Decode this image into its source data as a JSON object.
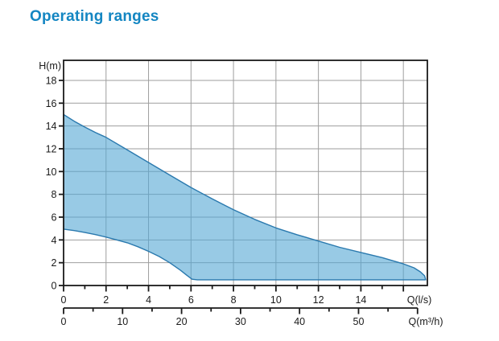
{
  "page": {
    "title": "Operating ranges"
  },
  "colors": {
    "title": "#1486c2",
    "region_fill": "rgba(84,166,212,0.6)",
    "region_stroke": "#2a79ae",
    "grid": "#9e9e9e",
    "axis": "#1a1a1a"
  },
  "chart_data": {
    "type": "area",
    "title": "Operating ranges",
    "description": "Pump operating range envelope: head H in metres versus flow Q, shaded band between minimum and maximum head curves",
    "legend": "none",
    "grid": "on",
    "y_axis": {
      "label": "H(m)",
      "lim": [
        0,
        19.76
      ],
      "tick_values": [
        0,
        2,
        4,
        6,
        8,
        10,
        12,
        14,
        16,
        18
      ],
      "tick_labels": [
        "0",
        "2",
        "4",
        "6",
        "8",
        "10",
        "12",
        "14",
        "16",
        "18"
      ],
      "gridlines": [
        2,
        4,
        6,
        8,
        10,
        12,
        14,
        16,
        18
      ]
    },
    "x_axis": {
      "label": "Q(l/s)",
      "lim": [
        0,
        17.13
      ],
      "labeled_ticks": [
        0,
        2,
        4,
        6,
        8,
        10,
        12,
        14
      ],
      "major_ticks": [
        0,
        2,
        4,
        6,
        8,
        10,
        12,
        14,
        16
      ],
      "minor_ticks": [
        1,
        3,
        5,
        7,
        9,
        11,
        13,
        15
      ],
      "gridlines": [
        2,
        4,
        6,
        8,
        10,
        12,
        14,
        16
      ]
    },
    "x_axis_secondary": {
      "label": "Q(m³/h)",
      "units_per_primary": 3.6,
      "lim": [
        0,
        60
      ],
      "labeled_ticks": [
        0,
        10,
        20,
        30,
        40,
        50
      ],
      "major_ticks": [
        0,
        10,
        20,
        30,
        40,
        50,
        60
      ],
      "minor_ticks": [
        5,
        15,
        25,
        35,
        45,
        55
      ]
    },
    "region": {
      "name": "operating-envelope",
      "upper_bound_q_h": [
        [
          0,
          15.0
        ],
        [
          0.5,
          14.42
        ],
        [
          1,
          13.9
        ],
        [
          1.5,
          13.43
        ],
        [
          2,
          13.0
        ],
        [
          3,
          11.9
        ],
        [
          4,
          10.8
        ],
        [
          5,
          9.7
        ],
        [
          6,
          8.6
        ],
        [
          7,
          7.6
        ],
        [
          8,
          6.65
        ],
        [
          9,
          5.8
        ],
        [
          10,
          5.05
        ],
        [
          11,
          4.45
        ],
        [
          12,
          3.9
        ],
        [
          13,
          3.35
        ],
        [
          14,
          2.9
        ],
        [
          15,
          2.45
        ],
        [
          16,
          1.9
        ],
        [
          16.5,
          1.55
        ],
        [
          16.8,
          1.2
        ],
        [
          17.0,
          0.85
        ],
        [
          17.05,
          0.5
        ]
      ],
      "lower_bound_q_h": [
        [
          0,
          4.95
        ],
        [
          0.5,
          4.82
        ],
        [
          1,
          4.65
        ],
        [
          1.5,
          4.47
        ],
        [
          2,
          4.25
        ],
        [
          2.5,
          4.0
        ],
        [
          3,
          3.75
        ],
        [
          3.5,
          3.4
        ],
        [
          4,
          3.0
        ],
        [
          4.5,
          2.55
        ],
        [
          5,
          2.0
        ],
        [
          5.5,
          1.35
        ],
        [
          5.8,
          0.9
        ],
        [
          6.05,
          0.55
        ],
        [
          6.3,
          0.5
        ],
        [
          17.05,
          0.5
        ]
      ]
    }
  }
}
